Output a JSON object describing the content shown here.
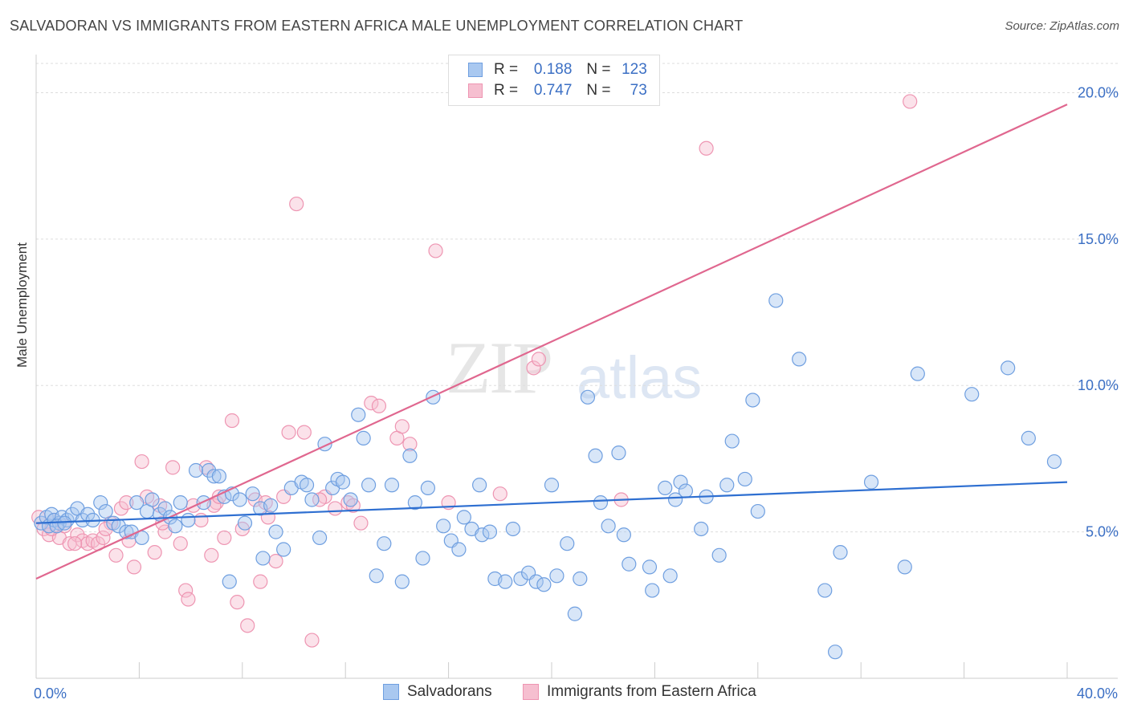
{
  "title": "SALVADORAN VS IMMIGRANTS FROM EASTERN AFRICA MALE UNEMPLOYMENT CORRELATION CHART",
  "source": "Source: ZipAtlas.com",
  "watermark": {
    "zip": "ZIP",
    "atlas": "atlas"
  },
  "colors": {
    "blue_fill": "#a9c8f0",
    "blue_stroke": "#6f9fe0",
    "blue_line": "#2e6fd1",
    "pink_fill": "#f6bfd0",
    "pink_stroke": "#ee95b2",
    "pink_line": "#e0678f",
    "tick_label": "#3b6fc4",
    "grid": "#dddddd"
  },
  "legend": {
    "r_label": "R =",
    "n_label": "N =",
    "series": [
      {
        "r": "0.188",
        "n": "123"
      },
      {
        "r": "0.747",
        "n": "73"
      }
    ]
  },
  "bottom_legend": [
    "Salvadorans",
    "Immigrants from Eastern Africa"
  ],
  "chart_data": {
    "type": "scatter",
    "ylabel": "Male Unemployment",
    "xlim": [
      0,
      40
    ],
    "ylim": [
      0,
      21
    ],
    "x_tick_labels": [
      {
        "v": 0,
        "label": "0.0%"
      },
      {
        "v": 40,
        "label": "40.0%"
      }
    ],
    "y_tick_labels": [
      {
        "v": 5,
        "label": "5.0%"
      },
      {
        "v": 10,
        "label": "10.0%"
      },
      {
        "v": 15,
        "label": "15.0%"
      },
      {
        "v": 20,
        "label": "20.0%"
      }
    ],
    "legend_position": "top-center",
    "series": [
      {
        "name": "Salvadorans",
        "trend": [
          [
            0,
            5.3
          ],
          [
            40,
            6.7
          ]
        ],
        "points": [
          [
            0.2,
            5.3
          ],
          [
            0.4,
            5.5
          ],
          [
            0.5,
            5.2
          ],
          [
            0.6,
            5.6
          ],
          [
            0.7,
            5.4
          ],
          [
            0.9,
            5.3
          ],
          [
            1.0,
            5.5
          ],
          [
            1.2,
            5.4
          ],
          [
            1.4,
            5.6
          ],
          [
            1.6,
            5.8
          ],
          [
            1.8,
            5.4
          ],
          [
            2.0,
            5.6
          ],
          [
            2.2,
            5.4
          ],
          [
            2.5,
            6.0
          ],
          [
            2.7,
            5.7
          ],
          [
            3.0,
            5.3
          ],
          [
            3.2,
            5.2
          ],
          [
            3.5,
            5.0
          ],
          [
            3.7,
            5.0
          ],
          [
            3.9,
            6.0
          ],
          [
            4.1,
            4.8
          ],
          [
            4.3,
            5.7
          ],
          [
            4.5,
            6.1
          ],
          [
            4.8,
            5.6
          ],
          [
            5.0,
            5.8
          ],
          [
            5.2,
            5.5
          ],
          [
            5.4,
            5.2
          ],
          [
            5.6,
            6.0
          ],
          [
            5.9,
            5.4
          ],
          [
            6.2,
            7.1
          ],
          [
            6.5,
            6.0
          ],
          [
            6.7,
            7.1
          ],
          [
            6.9,
            6.9
          ],
          [
            7.1,
            6.9
          ],
          [
            7.3,
            6.2
          ],
          [
            7.6,
            6.3
          ],
          [
            7.9,
            6.1
          ],
          [
            8.1,
            5.3
          ],
          [
            8.4,
            6.3
          ],
          [
            8.7,
            5.8
          ],
          [
            8.8,
            4.1
          ],
          [
            9.1,
            5.9
          ],
          [
            9.3,
            5.0
          ],
          [
            9.6,
            4.4
          ],
          [
            9.9,
            6.5
          ],
          [
            10.3,
            6.7
          ],
          [
            10.5,
            6.6
          ],
          [
            10.7,
            6.1
          ],
          [
            11.0,
            4.8
          ],
          [
            11.2,
            8.0
          ],
          [
            11.5,
            6.5
          ],
          [
            11.7,
            6.8
          ],
          [
            11.9,
            6.7
          ],
          [
            12.2,
            6.1
          ],
          [
            12.5,
            9.0
          ],
          [
            12.7,
            8.2
          ],
          [
            12.9,
            6.6
          ],
          [
            13.2,
            3.5
          ],
          [
            13.5,
            4.6
          ],
          [
            13.8,
            6.6
          ],
          [
            14.2,
            3.3
          ],
          [
            14.5,
            7.6
          ],
          [
            14.7,
            6.0
          ],
          [
            15.0,
            4.1
          ],
          [
            15.2,
            6.5
          ],
          [
            15.4,
            9.6
          ],
          [
            15.8,
            5.2
          ],
          [
            16.1,
            4.7
          ],
          [
            16.4,
            4.4
          ],
          [
            16.6,
            5.5
          ],
          [
            16.9,
            5.1
          ],
          [
            17.2,
            6.6
          ],
          [
            17.3,
            4.9
          ],
          [
            17.6,
            5.0
          ],
          [
            17.8,
            3.4
          ],
          [
            18.2,
            3.3
          ],
          [
            18.5,
            5.1
          ],
          [
            18.8,
            3.4
          ],
          [
            19.1,
            3.6
          ],
          [
            19.4,
            3.3
          ],
          [
            19.7,
            3.2
          ],
          [
            20.0,
            6.6
          ],
          [
            20.2,
            3.5
          ],
          [
            20.6,
            4.6
          ],
          [
            20.9,
            2.2
          ],
          [
            21.1,
            3.4
          ],
          [
            21.4,
            9.6
          ],
          [
            21.7,
            7.6
          ],
          [
            21.9,
            6.0
          ],
          [
            22.2,
            5.2
          ],
          [
            22.6,
            7.7
          ],
          [
            22.8,
            4.9
          ],
          [
            23.0,
            3.9
          ],
          [
            23.8,
            3.8
          ],
          [
            23.9,
            3.0
          ],
          [
            24.4,
            6.5
          ],
          [
            24.6,
            3.5
          ],
          [
            24.8,
            6.1
          ],
          [
            25.0,
            6.7
          ],
          [
            25.2,
            6.4
          ],
          [
            25.8,
            5.1
          ],
          [
            26.0,
            6.2
          ],
          [
            26.5,
            4.2
          ],
          [
            26.8,
            6.6
          ],
          [
            27.0,
            8.1
          ],
          [
            27.5,
            6.8
          ],
          [
            27.8,
            9.5
          ],
          [
            28.0,
            5.7
          ],
          [
            28.7,
            12.9
          ],
          [
            29.6,
            10.9
          ],
          [
            30.6,
            3.0
          ],
          [
            31.0,
            0.9
          ],
          [
            31.2,
            4.3
          ],
          [
            32.4,
            6.7
          ],
          [
            33.7,
            3.8
          ],
          [
            34.2,
            10.4
          ],
          [
            36.3,
            9.7
          ],
          [
            37.7,
            10.6
          ],
          [
            38.5,
            8.2
          ],
          [
            39.5,
            7.4
          ],
          [
            0.8,
            5.2
          ],
          [
            1.1,
            5.3
          ],
          [
            7.5,
            3.3
          ]
        ]
      },
      {
        "name": "Immigrants from Eastern Africa",
        "trend": [
          [
            0,
            3.4
          ],
          [
            40,
            19.6
          ]
        ],
        "points": [
          [
            0.1,
            5.5
          ],
          [
            0.3,
            5.1
          ],
          [
            0.5,
            4.9
          ],
          [
            0.7,
            5.4
          ],
          [
            0.9,
            4.8
          ],
          [
            1.1,
            5.2
          ],
          [
            1.3,
            4.6
          ],
          [
            1.6,
            4.9
          ],
          [
            1.8,
            4.7
          ],
          [
            2.0,
            4.6
          ],
          [
            2.2,
            4.7
          ],
          [
            2.4,
            4.6
          ],
          [
            2.6,
            4.8
          ],
          [
            2.9,
            5.3
          ],
          [
            3.1,
            4.2
          ],
          [
            3.3,
            5.8
          ],
          [
            3.6,
            4.7
          ],
          [
            3.8,
            3.8
          ],
          [
            4.1,
            7.4
          ],
          [
            4.3,
            6.2
          ],
          [
            4.6,
            4.3
          ],
          [
            4.8,
            5.9
          ],
          [
            5.0,
            5.0
          ],
          [
            5.3,
            7.2
          ],
          [
            5.6,
            4.6
          ],
          [
            5.8,
            3.0
          ],
          [
            5.9,
            2.7
          ],
          [
            6.1,
            5.9
          ],
          [
            6.4,
            5.4
          ],
          [
            6.6,
            7.2
          ],
          [
            6.8,
            4.2
          ],
          [
            7.0,
            6.0
          ],
          [
            7.3,
            4.8
          ],
          [
            7.6,
            8.8
          ],
          [
            7.8,
            2.6
          ],
          [
            8.0,
            5.1
          ],
          [
            8.2,
            1.8
          ],
          [
            8.5,
            6.1
          ],
          [
            8.7,
            3.3
          ],
          [
            9.0,
            5.5
          ],
          [
            9.3,
            4.0
          ],
          [
            9.6,
            6.2
          ],
          [
            9.8,
            8.4
          ],
          [
            10.1,
            16.2
          ],
          [
            10.4,
            8.4
          ],
          [
            10.7,
            1.3
          ],
          [
            11.2,
            6.2
          ],
          [
            11.6,
            5.8
          ],
          [
            12.1,
            6.0
          ],
          [
            12.6,
            5.3
          ],
          [
            13.0,
            9.4
          ],
          [
            13.3,
            9.3
          ],
          [
            14.0,
            8.2
          ],
          [
            14.2,
            8.6
          ],
          [
            14.5,
            8.0
          ],
          [
            15.5,
            14.6
          ],
          [
            16.0,
            6.0
          ],
          [
            18.0,
            6.3
          ],
          [
            19.3,
            10.6
          ],
          [
            19.5,
            10.9
          ],
          [
            22.7,
            6.1
          ],
          [
            26.0,
            18.1
          ],
          [
            33.9,
            19.7
          ],
          [
            2.7,
            5.1
          ],
          [
            3.5,
            6.0
          ],
          [
            4.9,
            5.3
          ],
          [
            6.9,
            5.9
          ],
          [
            7.1,
            6.2
          ],
          [
            8.9,
            6.0
          ],
          [
            1.5,
            4.6
          ],
          [
            0.6,
            5.1
          ],
          [
            11.0,
            6.1
          ],
          [
            12.3,
            5.9
          ]
        ]
      }
    ]
  }
}
